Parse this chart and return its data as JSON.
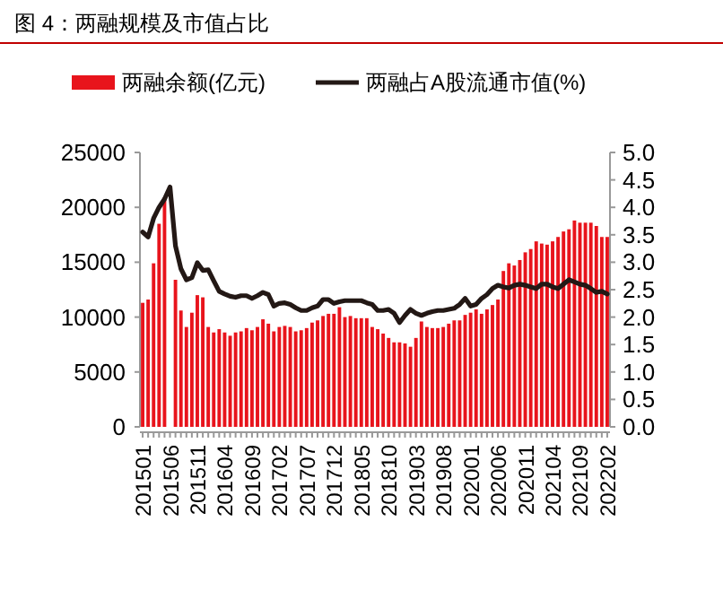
{
  "chart_data": {
    "type": "bar",
    "title": "图 4：两融规模及市值占比",
    "categories": [
      "201501",
      null,
      null,
      null,
      null,
      "201506",
      null,
      null,
      null,
      null,
      "201511",
      null,
      null,
      null,
      null,
      "201604",
      null,
      null,
      null,
      null,
      "201609",
      null,
      null,
      null,
      null,
      "201702",
      null,
      null,
      null,
      null,
      "201707",
      null,
      null,
      null,
      null,
      "201712",
      null,
      null,
      null,
      null,
      "201805",
      null,
      null,
      null,
      null,
      "201810",
      null,
      null,
      null,
      null,
      "201903",
      null,
      null,
      null,
      null,
      "201908",
      null,
      null,
      null,
      null,
      "202001",
      null,
      null,
      null,
      null,
      "202006",
      null,
      null,
      null,
      null,
      "202011",
      null,
      null,
      null,
      null,
      "202104",
      null,
      null,
      null,
      null,
      "202109",
      null,
      null,
      null,
      null,
      "202202"
    ],
    "series": [
      {
        "name": "两融余额(亿元)",
        "color": "#e8141c",
        "values": [
          11300,
          11600,
          14900,
          18500,
          20900,
          null,
          13400,
          10600,
          9100,
          10400,
          12000,
          11800,
          9100,
          8600,
          8900,
          8600,
          8300,
          8600,
          8700,
          9000,
          8800,
          9100,
          9800,
          9400,
          8700,
          9100,
          9200,
          9100,
          8700,
          8800,
          9000,
          9500,
          9700,
          10100,
          10300,
          10300,
          10900,
          10000,
          10100,
          9900,
          9900,
          9900,
          9100,
          8900,
          8500,
          8100,
          7700,
          7700,
          7600,
          7300,
          8100,
          9600,
          9100,
          9000,
          9000,
          9100,
          9400,
          9700,
          9700,
          10200,
          10400,
          10700,
          10300,
          10700,
          11100,
          11600,
          14200,
          14900,
          14700,
          15200,
          15900,
          16200,
          16900,
          16700,
          16600,
          16900,
          17300,
          17800,
          18000,
          18800,
          18600,
          18600,
          18600,
          18300,
          17300,
          17300
        ]
      },
      {
        "name": "两融占A股流通市值(%)",
        "type": "line",
        "axis": "y2",
        "color": "#231815",
        "values": [
          3.55,
          3.46,
          3.8,
          4.0,
          4.15,
          4.37,
          3.3,
          2.88,
          2.68,
          2.72,
          2.99,
          2.85,
          2.86,
          2.66,
          2.47,
          2.42,
          2.38,
          2.36,
          2.39,
          2.39,
          2.34,
          2.39,
          2.45,
          2.41,
          2.2,
          2.25,
          2.26,
          2.23,
          2.17,
          2.12,
          2.12,
          2.17,
          2.2,
          2.32,
          2.32,
          2.25,
          2.28,
          2.3,
          2.3,
          2.3,
          2.3,
          2.26,
          2.23,
          2.12,
          2.12,
          2.14,
          2.07,
          1.9,
          2.03,
          2.14,
          2.07,
          2.03,
          2.07,
          2.1,
          2.12,
          2.12,
          2.14,
          2.16,
          2.23,
          2.34,
          2.2,
          2.23,
          2.34,
          2.41,
          2.52,
          2.58,
          2.55,
          2.53,
          2.58,
          2.6,
          2.58,
          2.55,
          2.52,
          2.6,
          2.6,
          2.55,
          2.52,
          2.6,
          2.68,
          2.64,
          2.6,
          2.58,
          2.52,
          2.45,
          2.47,
          2.42
        ]
      }
    ],
    "ylim": [
      0,
      25000
    ],
    "yticks": [
      0,
      5000,
      10000,
      15000,
      20000,
      25000
    ],
    "y2lim": [
      0,
      5
    ],
    "y2ticks": [
      {
        "value": 0,
        "label": "0.0"
      },
      {
        "value": 0.5,
        "label": "0.5"
      },
      {
        "value": 1,
        "label": "1.0"
      },
      {
        "value": 1.5,
        "label": "1.5"
      },
      {
        "value": 2,
        "label": "2.0"
      },
      {
        "value": 2.5,
        "label": "2.5"
      },
      {
        "value": 3,
        "label": "3.0"
      },
      {
        "value": 3.5,
        "label": "3.5"
      },
      {
        "value": 4,
        "label": "4.0"
      },
      {
        "value": 4.5,
        "label": "4.5"
      },
      {
        "value": 5,
        "label": "5.0"
      }
    ],
    "legend": "top",
    "grid": false,
    "marker": "none",
    "line_style": "solid"
  }
}
